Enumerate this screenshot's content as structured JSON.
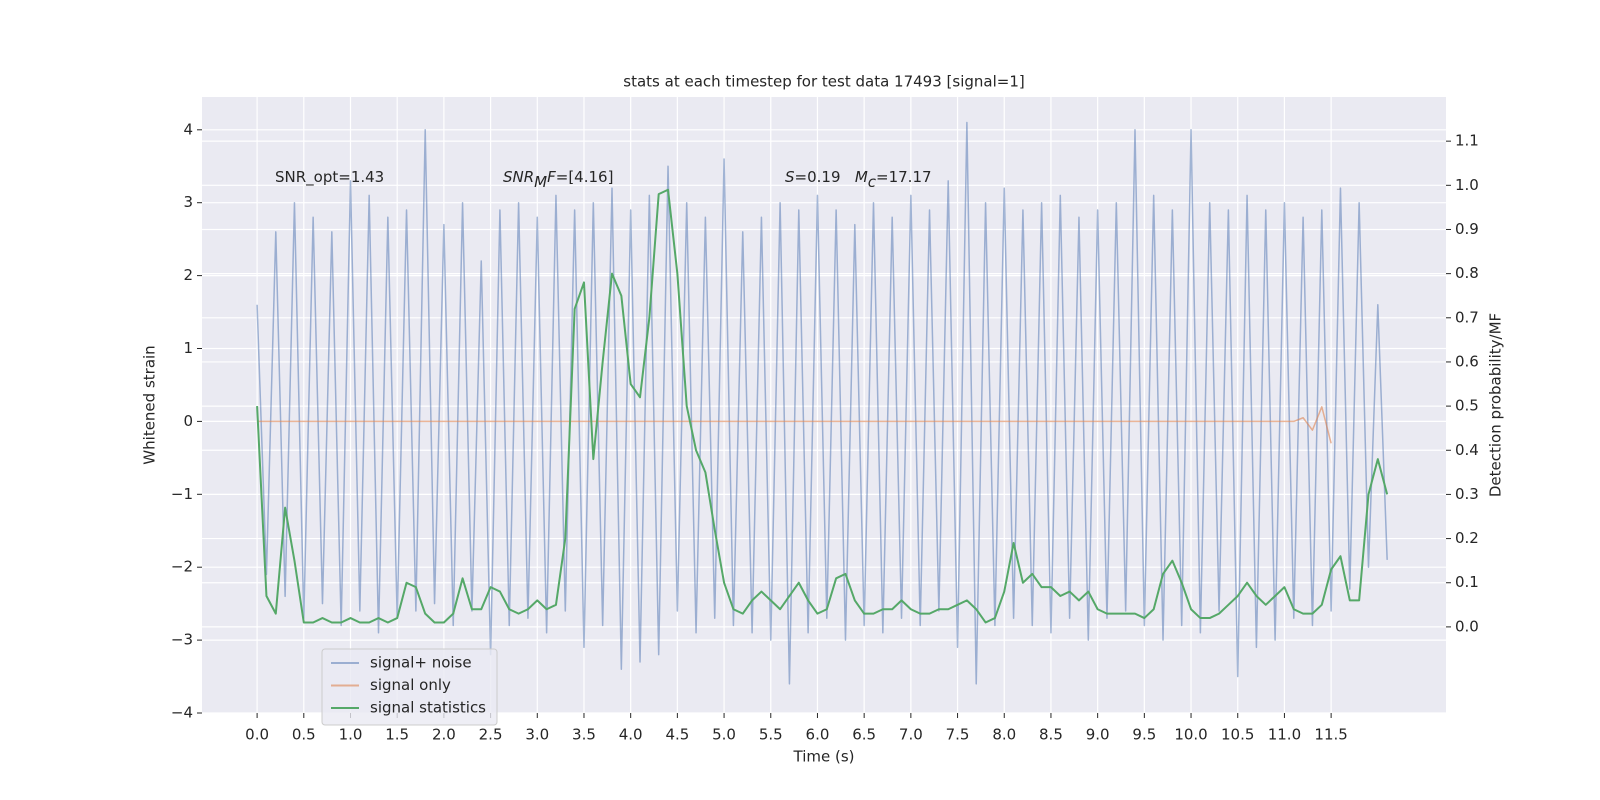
{
  "chart_data": {
    "type": "line",
    "title": "stats at each timestep for test data 17493 [signal=1]",
    "xlabel": "Time (s)",
    "ylabel": "Whitened strain",
    "y2label": "Detection probability/MF",
    "annotations": [
      {
        "parts": [
          {
            "text": "SNR_opt=1.43"
          }
        ]
      },
      {
        "parts": [
          {
            "text": "SNR",
            "style": "italic"
          },
          {
            "text": "M",
            "style": "italic-sub"
          },
          {
            "text": "F",
            "style": "italic"
          },
          {
            "text": "=[4.16]"
          }
        ]
      },
      {
        "parts": [
          {
            "text": "S",
            "style": "italic"
          },
          {
            "text": "=0.19   "
          },
          {
            "text": "M",
            "style": "italic"
          },
          {
            "text": "c",
            "style": "italic-sub"
          },
          {
            "text": "=17.17"
          }
        ]
      }
    ],
    "x": [
      0,
      0.1,
      0.2,
      0.3,
      0.4,
      0.5,
      0.6,
      0.7,
      0.8,
      0.9,
      1,
      1.1,
      1.2,
      1.3,
      1.4,
      1.5,
      1.6,
      1.7,
      1.8,
      1.9,
      2,
      2.1,
      2.2,
      2.3,
      2.4,
      2.5,
      2.6,
      2.7,
      2.8,
      2.9,
      3,
      3.1,
      3.2,
      3.3,
      3.4,
      3.5,
      3.6,
      3.7,
      3.8,
      3.9,
      4,
      4.1,
      4.2,
      4.3,
      4.4,
      4.5,
      4.6,
      4.7,
      4.8,
      4.9,
      5,
      5.1,
      5.2,
      5.3,
      5.4,
      5.5,
      5.6,
      5.7,
      5.8,
      5.9,
      6,
      6.1,
      6.2,
      6.3,
      6.4,
      6.5,
      6.6,
      6.7,
      6.8,
      6.9,
      7,
      7.1,
      7.2,
      7.3,
      7.4,
      7.5,
      7.6,
      7.7,
      7.8,
      7.9,
      8,
      8.1,
      8.2,
      8.3,
      8.4,
      8.5,
      8.6,
      8.7,
      8.8,
      8.9,
      9,
      9.1,
      9.2,
      9.3,
      9.4,
      9.5,
      9.6,
      9.7,
      9.8,
      9.9,
      10,
      10.1,
      10.2,
      10.3,
      10.4,
      10.5,
      10.6,
      10.7,
      10.8,
      10.9,
      11,
      11.1,
      11.2,
      11.3,
      11.4,
      11.5,
      11.6,
      11.7,
      11.8,
      11.9,
      12,
      12.1
    ],
    "series": [
      {
        "name": "signal+ noise",
        "color": "#4c72b0",
        "opacity": 0.5,
        "values": [
          1.6,
          -2.1,
          2.6,
          -2.4,
          3.0,
          -2.7,
          2.8,
          -2.5,
          2.6,
          -2.8,
          3.3,
          -2.6,
          3.1,
          -2.9,
          2.8,
          -2.7,
          2.9,
          -2.6,
          4.0,
          -2.5,
          2.7,
          -2.8,
          3.0,
          -2.6,
          2.2,
          -3.2,
          2.9,
          -2.8,
          3.0,
          -2.7,
          2.8,
          -2.9,
          3.1,
          -2.6,
          2.9,
          -3.1,
          3.0,
          -2.8,
          3.2,
          -3.4,
          2.9,
          -3.3,
          3.1,
          -3.2,
          3.5,
          -2.6,
          3.0,
          -2.9,
          2.8,
          -2.7,
          3.6,
          -2.8,
          2.6,
          -2.9,
          2.8,
          -3.0,
          3.0,
          -3.6,
          2.9,
          -2.9,
          3.1,
          -2.7,
          2.9,
          -3.0,
          2.7,
          -2.8,
          3.0,
          -2.9,
          2.8,
          -2.7,
          3.1,
          -2.8,
          2.9,
          -2.6,
          3.3,
          -3.1,
          4.1,
          -3.6,
          3.0,
          -2.8,
          3.2,
          -2.7,
          2.9,
          -2.8,
          3.0,
          -2.9,
          3.1,
          -2.7,
          2.8,
          -3.0,
          2.9,
          -2.7,
          3.0,
          -2.6,
          4.0,
          -2.8,
          3.1,
          -3.0,
          2.9,
          -2.8,
          4.0,
          -2.9,
          3.0,
          -2.6,
          2.9,
          -3.5,
          3.1,
          -3.1,
          2.9,
          -3.0,
          3.0,
          -2.7,
          2.8,
          -2.8,
          2.9,
          -2.6,
          3.2,
          -2.3,
          3.0,
          -2.0,
          1.6,
          -1.9
        ]
      },
      {
        "name": "signal only",
        "color": "#dd8452",
        "opacity": 0.6,
        "values": [
          0,
          0,
          0,
          0,
          0,
          0,
          0,
          0,
          0,
          0,
          0,
          0,
          0,
          0,
          0,
          0,
          0,
          0,
          0,
          0,
          0,
          0,
          0,
          0,
          0,
          0,
          0,
          0,
          0,
          0,
          0,
          0,
          0,
          0,
          0,
          0,
          0,
          0,
          0,
          0,
          0,
          0,
          0,
          0,
          0,
          0,
          0,
          0,
          0,
          0,
          0,
          0,
          0,
          0,
          0,
          0,
          0,
          0,
          0,
          0,
          0,
          0,
          0,
          0,
          0,
          0,
          0,
          0,
          0,
          0,
          0,
          0,
          0,
          0,
          0,
          0,
          0,
          0,
          0,
          0,
          0,
          0,
          0,
          0,
          0,
          0,
          0,
          0,
          0,
          0,
          0,
          0,
          0,
          0,
          0,
          0,
          0,
          0,
          0,
          0,
          0,
          0,
          0,
          0,
          0,
          0,
          0,
          0,
          0,
          0,
          0,
          0,
          0.05,
          -0.12,
          0.2,
          -0.3,
          null,
          null,
          null,
          null,
          null,
          null
        ]
      },
      {
        "name": "signal statistics",
        "color": "#55a868",
        "opacity": 1,
        "axis": "y2",
        "values": [
          0.5,
          0.07,
          0.03,
          0.27,
          0.15,
          0.01,
          0.01,
          0.02,
          0.01,
          0.01,
          0.02,
          0.01,
          0.01,
          0.02,
          0.01,
          0.02,
          0.1,
          0.09,
          0.03,
          0.01,
          0.01,
          0.03,
          0.11,
          0.04,
          0.04,
          0.09,
          0.08,
          0.04,
          0.03,
          0.04,
          0.06,
          0.04,
          0.05,
          0.2,
          0.72,
          0.78,
          0.38,
          0.6,
          0.8,
          0.75,
          0.55,
          0.52,
          0.7,
          0.98,
          0.99,
          0.8,
          0.5,
          0.4,
          0.35,
          0.22,
          0.1,
          0.04,
          0.03,
          0.06,
          0.08,
          0.06,
          0.04,
          0.07,
          0.1,
          0.06,
          0.03,
          0.04,
          0.11,
          0.12,
          0.06,
          0.03,
          0.03,
          0.04,
          0.04,
          0.06,
          0.04,
          0.03,
          0.03,
          0.04,
          0.04,
          0.05,
          0.06,
          0.04,
          0.01,
          0.02,
          0.08,
          0.19,
          0.1,
          0.12,
          0.09,
          0.09,
          0.07,
          0.08,
          0.06,
          0.08,
          0.04,
          0.03,
          0.03,
          0.03,
          0.03,
          0.02,
          0.04,
          0.12,
          0.15,
          0.1,
          0.04,
          0.02,
          0.02,
          0.03,
          0.05,
          0.07,
          0.1,
          0.07,
          0.05,
          0.07,
          0.09,
          0.04,
          0.03,
          0.03,
          0.05,
          0.13,
          0.16,
          0.06,
          0.06,
          0.3,
          0.38,
          0.3
        ]
      }
    ],
    "xlim": [
      -0.59,
      12.73
    ],
    "xticks": [
      {
        "value": 0,
        "label": "0.0"
      },
      0.5,
      {
        "value": 1,
        "label": "1.0"
      },
      1.5,
      {
        "value": 2,
        "label": "2.0"
      },
      2.5,
      {
        "value": 3,
        "label": "3.0"
      },
      3.5,
      {
        "value": 4,
        "label": "4.0"
      },
      4.5,
      {
        "value": 5,
        "label": "5.0"
      },
      5.5,
      {
        "value": 6,
        "label": "6.0"
      },
      6.5,
      {
        "value": 7,
        "label": "7.0"
      },
      7.5,
      {
        "value": 8,
        "label": "8.0"
      },
      8.5,
      {
        "value": 9,
        "label": "9.0"
      },
      9.5,
      {
        "value": 10,
        "label": "10.0"
      },
      10.5,
      {
        "value": 11,
        "label": "11.0"
      },
      11.5
    ],
    "ylim": [
      -4,
      4.45
    ],
    "yticks": [
      {
        "value": -4,
        "label": "−4"
      },
      {
        "value": -3,
        "label": "−3"
      },
      {
        "value": -2,
        "label": "−2"
      },
      {
        "value": -1,
        "label": "−1"
      },
      0,
      1,
      2,
      3,
      4
    ],
    "y2lim": [
      -0.195,
      1.2
    ],
    "y2ticks": [
      {
        "value": 0,
        "label": "0.0"
      },
      0.1,
      0.2,
      0.3,
      0.4,
      0.5,
      0.6,
      0.7,
      0.8,
      0.9,
      {
        "value": 1,
        "label": "1.0"
      },
      1.1
    ],
    "grid": true,
    "legend": "lower left"
  }
}
